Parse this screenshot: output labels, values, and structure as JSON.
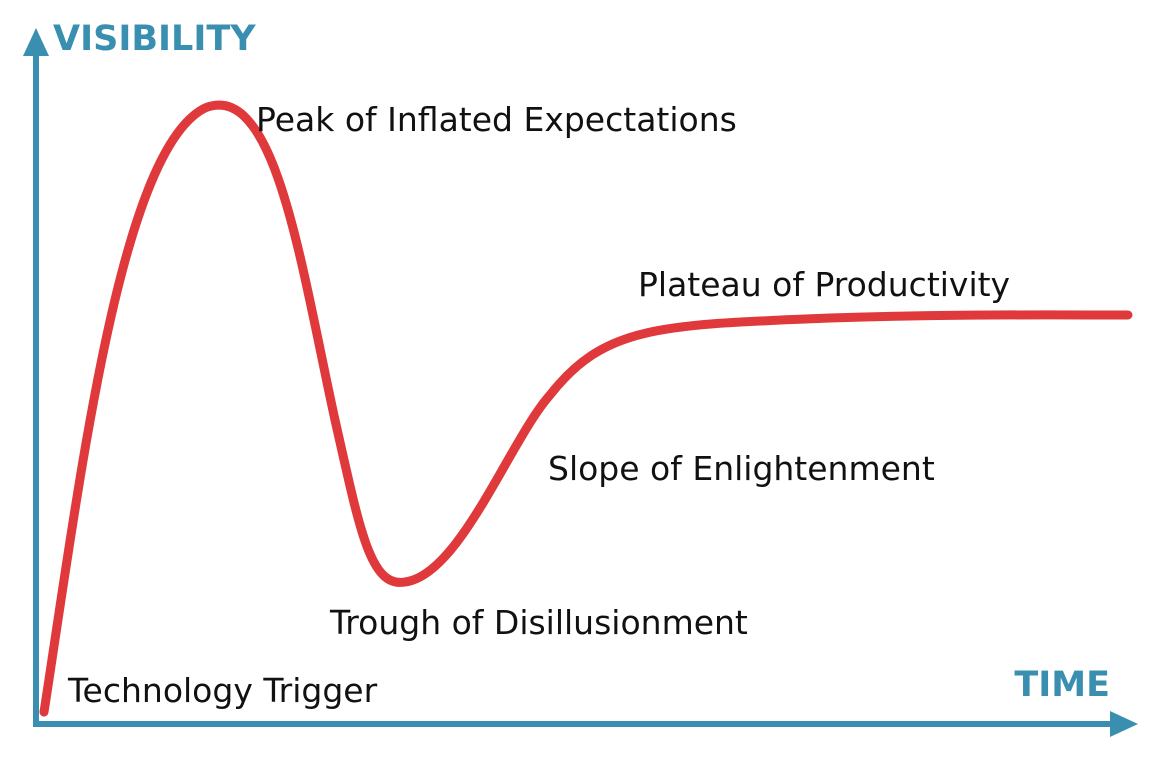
{
  "axes": {
    "y_label": "VISIBILITY",
    "x_label": "TIME",
    "color": "#3a8fb0"
  },
  "curve": {
    "color": "#e0393b"
  },
  "phases": {
    "technology_trigger": "Technology Trigger",
    "peak": "Peak of Inflated Expectations",
    "trough": "Trough of Disillusionment",
    "slope": "Slope of Enlightenment",
    "plateau": "Plateau of Productivity"
  }
}
